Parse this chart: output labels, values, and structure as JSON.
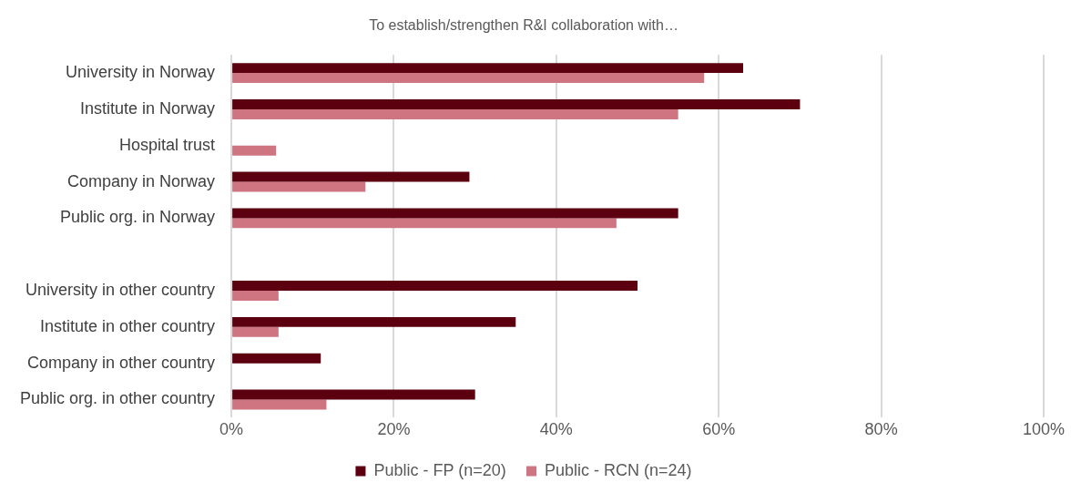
{
  "chart_data": {
    "type": "bar",
    "orientation": "horizontal",
    "title": "To establish/strengthen R&I collaboration with…",
    "categories": [
      "University in Norway",
      "Institute in Norway",
      "Hospital trust",
      "Company in Norway",
      "Public org. in Norway",
      null,
      "University in other country",
      "Institute in other country",
      "Company in other country",
      "Public org. in other country"
    ],
    "series": [
      {
        "name": "Public - FP (n=20)",
        "color": "#5c000f",
        "values": [
          63,
          70,
          null,
          29.3,
          55,
          null,
          50,
          35,
          11,
          30
        ]
      },
      {
        "name": "Public - RCN (n=24)",
        "color": "#cf7582",
        "values": [
          58.2,
          55,
          5.5,
          16.5,
          47.4,
          null,
          5.8,
          5.8,
          null,
          11.7
        ]
      }
    ],
    "xlim": [
      0,
      100
    ],
    "xticks": [
      {
        "value": 0,
        "label": "0%"
      },
      {
        "value": 20,
        "label": "20%"
      },
      {
        "value": 40,
        "label": "40%"
      },
      {
        "value": 60,
        "label": "60%"
      },
      {
        "value": 80,
        "label": "80%"
      },
      {
        "value": 100,
        "label": "100%"
      }
    ],
    "grid": "x",
    "legend": "bottom"
  }
}
